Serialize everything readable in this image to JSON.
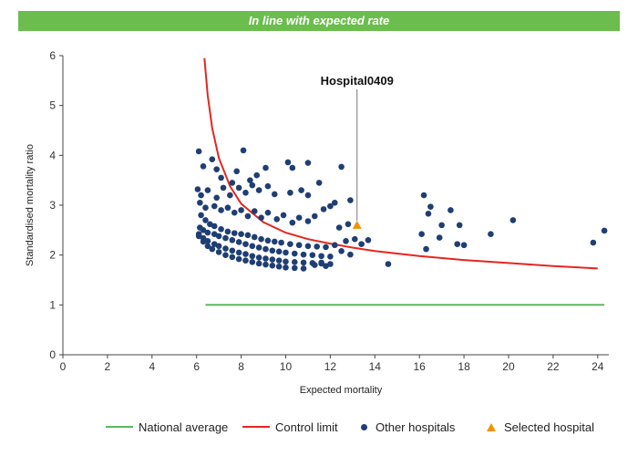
{
  "banner": {
    "text": "In line with expected rate"
  },
  "chart_data": {
    "type": "scatter",
    "xlabel": "Expected mortality",
    "ylabel": "Standardised mortality ratio",
    "xlim": [
      0,
      24.5
    ],
    "ylim": [
      0,
      6
    ],
    "xticks": [
      0,
      2,
      4,
      6,
      8,
      10,
      12,
      14,
      16,
      18,
      20,
      22,
      24
    ],
    "yticks": [
      0,
      1,
      2,
      3,
      4,
      5,
      6
    ],
    "grid": false,
    "legend_position": "bottom",
    "annotation": {
      "text": "Hospital0409",
      "x": 13.2,
      "y": 2.6
    },
    "series": [
      {
        "name": "National average",
        "kind": "line",
        "color": "#5cb85c",
        "x": [
          6.4,
          24.3
        ],
        "y": [
          1,
          1
        ]
      },
      {
        "name": "Control limit",
        "kind": "line",
        "color": "#e52620",
        "x": [
          6.35,
          6.5,
          6.7,
          7.0,
          7.5,
          8.0,
          9.0,
          10.0,
          11.0,
          12.0,
          13.0,
          14.0,
          16.0,
          18.0,
          20.0,
          22.0,
          24.0
        ],
        "y": [
          5.95,
          5.2,
          4.55,
          3.95,
          3.38,
          3.03,
          2.66,
          2.45,
          2.32,
          2.23,
          2.15,
          2.08,
          1.98,
          1.9,
          1.84,
          1.78,
          1.73
        ]
      },
      {
        "name": "Other hospitals",
        "kind": "scatter",
        "color": "#1f3e73",
        "points": [
          [
            6.1,
            4.08
          ],
          [
            6.3,
            3.78
          ],
          [
            6.7,
            3.92
          ],
          [
            6.9,
            3.72
          ],
          [
            7.1,
            3.55
          ],
          [
            7.6,
            3.45
          ],
          [
            7.8,
            3.68
          ],
          [
            8.1,
            4.1
          ],
          [
            8.4,
            3.5
          ],
          [
            8.7,
            3.6
          ],
          [
            9.1,
            3.75
          ],
          [
            10.1,
            3.86
          ],
          [
            10.3,
            3.75
          ],
          [
            11.0,
            3.85
          ],
          [
            12.5,
            3.77
          ],
          [
            6.05,
            3.32
          ],
          [
            6.2,
            3.2
          ],
          [
            6.5,
            3.3
          ],
          [
            6.9,
            3.15
          ],
          [
            7.2,
            3.35
          ],
          [
            7.5,
            3.2
          ],
          [
            7.9,
            3.35
          ],
          [
            8.2,
            3.25
          ],
          [
            8.5,
            3.4
          ],
          [
            8.8,
            3.3
          ],
          [
            9.2,
            3.38
          ],
          [
            9.5,
            3.22
          ],
          [
            10.2,
            3.25
          ],
          [
            10.7,
            3.3
          ],
          [
            11.0,
            3.2
          ],
          [
            11.5,
            3.45
          ],
          [
            12.2,
            3.05
          ],
          [
            12.9,
            3.1
          ],
          [
            6.15,
            3.05
          ],
          [
            6.4,
            2.95
          ],
          [
            6.8,
            2.98
          ],
          [
            7.1,
            2.9
          ],
          [
            7.4,
            2.95
          ],
          [
            7.7,
            2.85
          ],
          [
            8.0,
            2.9
          ],
          [
            8.3,
            2.78
          ],
          [
            8.6,
            2.88
          ],
          [
            8.9,
            2.75
          ],
          [
            9.2,
            2.85
          ],
          [
            9.6,
            2.72
          ],
          [
            9.9,
            2.8
          ],
          [
            10.3,
            2.65
          ],
          [
            10.6,
            2.75
          ],
          [
            11.0,
            2.68
          ],
          [
            11.3,
            2.78
          ],
          [
            11.7,
            2.92
          ],
          [
            12.0,
            2.98
          ],
          [
            12.4,
            2.55
          ],
          [
            12.8,
            2.62
          ],
          [
            6.2,
            2.8
          ],
          [
            6.4,
            2.7
          ],
          [
            6.6,
            2.62
          ],
          [
            6.8,
            2.58
          ],
          [
            7.1,
            2.52
          ],
          [
            7.4,
            2.47
          ],
          [
            7.7,
            2.44
          ],
          [
            8.0,
            2.42
          ],
          [
            8.3,
            2.4
          ],
          [
            8.6,
            2.36
          ],
          [
            8.9,
            2.32
          ],
          [
            9.2,
            2.29
          ],
          [
            9.5,
            2.27
          ],
          [
            9.8,
            2.25
          ],
          [
            10.2,
            2.22
          ],
          [
            10.6,
            2.2
          ],
          [
            11.0,
            2.18
          ],
          [
            11.4,
            2.17
          ],
          [
            11.8,
            2.16
          ],
          [
            12.2,
            2.2
          ],
          [
            12.7,
            2.28
          ],
          [
            13.1,
            2.32
          ],
          [
            13.4,
            2.22
          ],
          [
            13.7,
            2.3
          ],
          [
            6.15,
            2.55
          ],
          [
            6.3,
            2.5
          ],
          [
            6.5,
            2.45
          ],
          [
            6.8,
            2.42
          ],
          [
            7.0,
            2.38
          ],
          [
            7.3,
            2.34
          ],
          [
            7.6,
            2.3
          ],
          [
            7.9,
            2.26
          ],
          [
            8.2,
            2.22
          ],
          [
            8.5,
            2.18
          ],
          [
            8.8,
            2.15
          ],
          [
            9.1,
            2.12
          ],
          [
            9.4,
            2.09
          ],
          [
            9.7,
            2.07
          ],
          [
            10.0,
            2.05
          ],
          [
            10.4,
            2.03
          ],
          [
            10.8,
            2.01
          ],
          [
            11.2,
            2.0
          ],
          [
            11.6,
            1.98
          ],
          [
            12.0,
            1.97
          ],
          [
            12.5,
            2.08
          ],
          [
            6.1,
            2.42
          ],
          [
            6.3,
            2.34
          ],
          [
            6.5,
            2.28
          ],
          [
            6.8,
            2.22
          ],
          [
            7.0,
            2.18
          ],
          [
            7.3,
            2.13
          ],
          [
            7.6,
            2.09
          ],
          [
            7.9,
            2.05
          ],
          [
            8.2,
            2.02
          ],
          [
            8.5,
            1.98
          ],
          [
            8.8,
            1.95
          ],
          [
            9.1,
            1.93
          ],
          [
            9.4,
            1.91
          ],
          [
            9.7,
            1.89
          ],
          [
            10.0,
            1.87
          ],
          [
            10.4,
            1.86
          ],
          [
            10.8,
            1.85
          ],
          [
            11.2,
            1.84
          ],
          [
            11.6,
            1.83
          ],
          [
            12.0,
            1.82
          ],
          [
            12.9,
            2.01
          ],
          [
            6.1,
            2.38
          ],
          [
            6.3,
            2.27
          ],
          [
            6.5,
            2.18
          ],
          [
            6.7,
            2.12
          ],
          [
            7.0,
            2.06
          ],
          [
            7.3,
            2.0
          ],
          [
            7.6,
            1.96
          ],
          [
            7.9,
            1.92
          ],
          [
            8.2,
            1.89
          ],
          [
            8.5,
            1.86
          ],
          [
            8.8,
            1.83
          ],
          [
            9.1,
            1.81
          ],
          [
            9.4,
            1.79
          ],
          [
            9.7,
            1.77
          ],
          [
            10.0,
            1.75
          ],
          [
            10.4,
            1.74
          ],
          [
            10.8,
            1.73
          ],
          [
            11.3,
            1.8
          ],
          [
            11.6,
            1.85
          ],
          [
            11.8,
            1.78
          ],
          [
            14.6,
            1.82
          ],
          [
            16.2,
            3.2
          ],
          [
            16.5,
            2.97
          ],
          [
            16.4,
            2.83
          ],
          [
            17.4,
            2.9
          ],
          [
            17.8,
            2.6
          ],
          [
            17.0,
            2.6
          ],
          [
            16.1,
            2.42
          ],
          [
            17.7,
            2.22
          ],
          [
            18.0,
            2.2
          ],
          [
            16.9,
            2.35
          ],
          [
            16.3,
            2.12
          ],
          [
            19.2,
            2.42
          ],
          [
            20.2,
            2.7
          ],
          [
            23.8,
            2.25
          ],
          [
            24.3,
            2.49
          ]
        ]
      },
      {
        "name": "Selected hospital",
        "kind": "scatter",
        "marker": "triangle",
        "color": "#f39200",
        "points": [
          [
            13.2,
            2.6
          ]
        ]
      }
    ]
  }
}
